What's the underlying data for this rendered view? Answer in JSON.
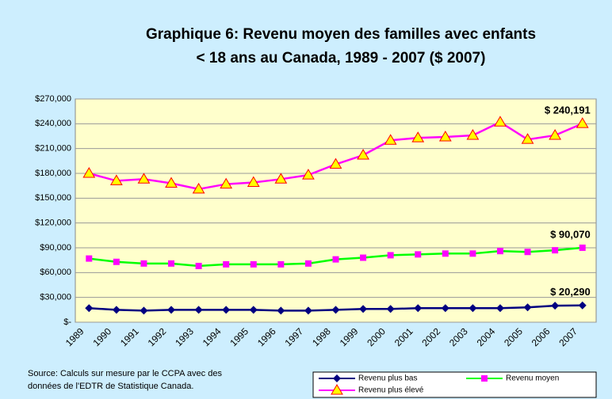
{
  "chart_data": {
    "type": "line",
    "title": [
      "Graphique 6: Revenu moyen des familles avec enfants",
      "< 18 ans au Canada, 1989 - 2007 ($ 2007)"
    ],
    "categories": [
      "1989",
      "1990",
      "1991",
      "1992",
      "1993",
      "1994",
      "1995",
      "1996",
      "1997",
      "1998",
      "1999",
      "2000",
      "2001",
      "2002",
      "2003",
      "2004",
      "2005",
      "2006",
      "2007"
    ],
    "series": [
      {
        "name": "Revenu plus bas",
        "color": "#000080",
        "marker": "diamond",
        "marker_color": "#000080",
        "values": [
          17000,
          15000,
          14000,
          15000,
          15000,
          15000,
          15000,
          14000,
          14000,
          15000,
          16000,
          16000,
          17000,
          17000,
          17000,
          17000,
          18000,
          20000,
          20290
        ],
        "value_labels": [
          null,
          null,
          null,
          null,
          null,
          null,
          null,
          null,
          null,
          null,
          null,
          null,
          null,
          null,
          null,
          null,
          null,
          null,
          "$ 20,290"
        ]
      },
      {
        "name": "Revenu moyen",
        "color": "#00ff00",
        "marker": "square",
        "marker_color": "#ff00ff",
        "values": [
          77000,
          73000,
          71000,
          71000,
          68000,
          70000,
          70000,
          70000,
          71000,
          76000,
          78000,
          81000,
          82000,
          83000,
          83000,
          86000,
          85000,
          87000,
          90070
        ],
        "value_labels": [
          null,
          null,
          null,
          null,
          null,
          null,
          null,
          null,
          null,
          null,
          null,
          null,
          null,
          null,
          null,
          null,
          null,
          null,
          "$ 90,070"
        ]
      },
      {
        "name": "Revenu plus élevé",
        "color": "#ff00ff",
        "marker": "triangle",
        "marker_color": "#ffff00",
        "values": [
          180000,
          171000,
          173000,
          168000,
          161000,
          167000,
          169000,
          173000,
          178000,
          191000,
          202000,
          220000,
          223000,
          224000,
          226000,
          242000,
          221000,
          226000,
          240191
        ],
        "value_labels": [
          null,
          null,
          null,
          null,
          null,
          null,
          null,
          null,
          null,
          null,
          null,
          null,
          null,
          null,
          null,
          null,
          null,
          null,
          "$ 240,191"
        ]
      }
    ],
    "ylim": [
      0,
      270000
    ],
    "yticks": [
      {
        "value": 0,
        "label": "$-"
      },
      {
        "value": 30000,
        "label": "$30,000"
      },
      {
        "value": 60000,
        "label": "$60,000"
      },
      {
        "value": 90000,
        "label": "$90,000"
      },
      {
        "value": 120000,
        "label": "$120,000"
      },
      {
        "value": 150000,
        "label": "$150,000"
      },
      {
        "value": 180000,
        "label": "$180,000"
      },
      {
        "value": 210000,
        "label": "$210,000"
      },
      {
        "value": 240000,
        "label": "$240,000"
      },
      {
        "value": 270000,
        "label": "$270,000"
      }
    ],
    "grid": true,
    "source": [
      "Source: Calculs sur mesure par le CCPA avec des",
      "données de l'EDTR de Statistique Canada."
    ],
    "legend": "bottom-right"
  }
}
